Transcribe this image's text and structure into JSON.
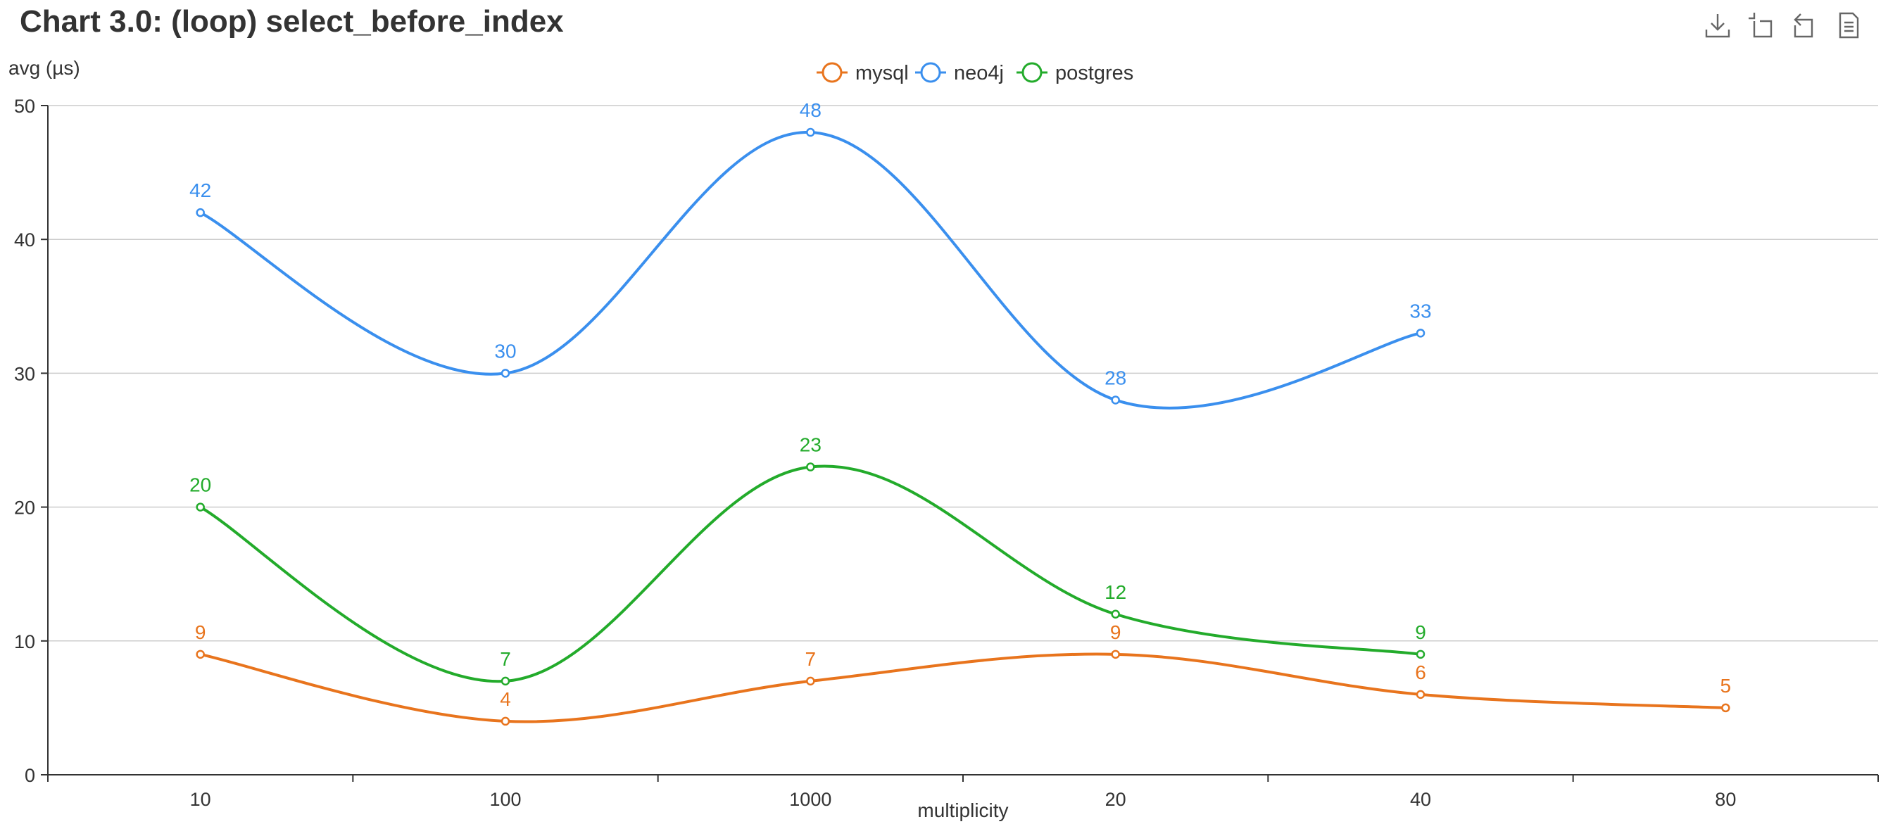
{
  "title": "Chart 3.0: (loop) select_before_index",
  "toolbox": {
    "icons": [
      "download-icon",
      "crop-icon",
      "restore-icon",
      "data-view-icon"
    ]
  },
  "chart_data": {
    "type": "line",
    "smooth": true,
    "title": "Chart 3.0: (loop) select_before_index",
    "xlabel": "multiplicity",
    "ylabel": "avg (µs)",
    "categories": [
      "10",
      "100",
      "1000",
      "20",
      "40",
      "80"
    ],
    "ylim": [
      0,
      50
    ],
    "yticks": [
      0,
      10,
      20,
      30,
      40,
      50
    ],
    "grid": "horizontal",
    "legend_position": "top-center",
    "series": [
      {
        "name": "mysql",
        "color": "#e8741d",
        "values": [
          9,
          4,
          7,
          9,
          6,
          5
        ]
      },
      {
        "name": "neo4j",
        "color": "#3a8fee",
        "values": [
          42,
          30,
          48,
          28,
          33,
          null
        ]
      },
      {
        "name": "postgres",
        "color": "#23ab2b",
        "values": [
          20,
          7,
          23,
          12,
          9,
          null
        ]
      }
    ]
  }
}
